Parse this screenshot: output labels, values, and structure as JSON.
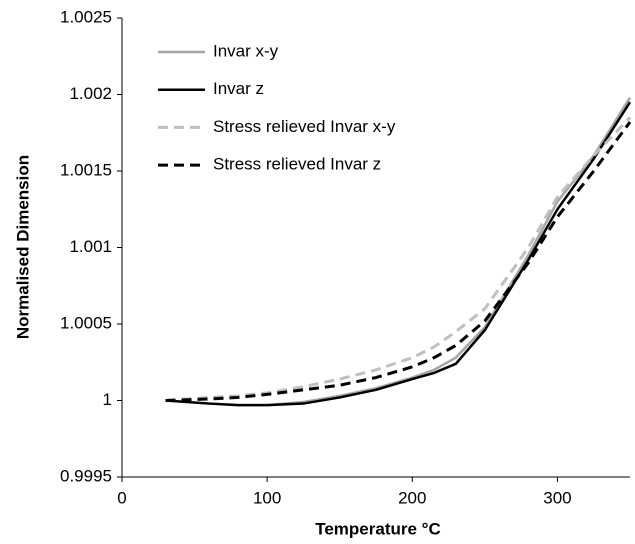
{
  "chart_data": {
    "type": "line",
    "xlabel": "Temperature °C",
    "ylabel": "Normalised Dimension",
    "x": [
      30,
      60,
      80,
      100,
      125,
      150,
      175,
      200,
      215,
      230,
      250,
      280,
      300,
      325,
      350
    ],
    "series": [
      {
        "name": "Invar x-y",
        "color": "#a6a6a6",
        "dash": false,
        "values": [
          1.0,
          0.99998,
          0.99997,
          0.99997,
          0.99999,
          1.00003,
          1.00008,
          1.00015,
          1.0002,
          1.00028,
          1.00048,
          1.00095,
          1.0013,
          1.0016,
          1.00198
        ]
      },
      {
        "name": "Invar z",
        "color": "#000000",
        "dash": false,
        "values": [
          1.0,
          0.99998,
          0.99997,
          0.99997,
          0.99998,
          1.00002,
          1.00007,
          1.00014,
          1.00018,
          1.00024,
          1.00046,
          1.00092,
          1.00125,
          1.00158,
          1.00195
        ]
      },
      {
        "name": "Stress relieved Invar x-y",
        "color": "#bfbfbf",
        "dash": true,
        "values": [
          1.0,
          1.00002,
          1.00003,
          1.00005,
          1.00009,
          1.00014,
          1.0002,
          1.00028,
          1.00035,
          1.00045,
          1.0006,
          1.001,
          1.00133,
          1.0016,
          1.00185
        ]
      },
      {
        "name": "Stress relieved Invar z",
        "color": "#000000",
        "dash": true,
        "values": [
          1.0,
          1.00001,
          1.00002,
          1.00004,
          1.00007,
          1.0001,
          1.00015,
          1.00022,
          1.00028,
          1.00036,
          1.00052,
          1.0009,
          1.0012,
          1.0015,
          1.00182
        ]
      }
    ],
    "xlim": [
      0,
      350
    ],
    "xticks": [
      0,
      100,
      200,
      300
    ],
    "ylim": [
      0.9995,
      1.0025
    ],
    "yticks": [
      0.9995,
      1,
      1.0005,
      1.001,
      1.0015,
      1.002,
      1.0025
    ],
    "legend": "upper left"
  }
}
